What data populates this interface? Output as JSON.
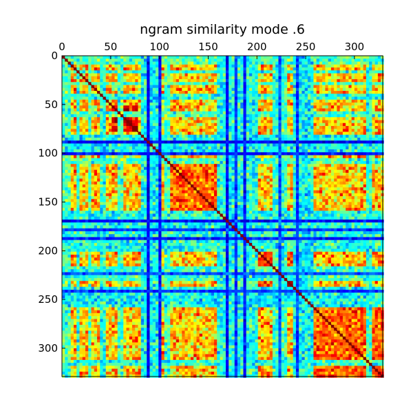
{
  "chart_data": {
    "type": "heatmap",
    "title": "ngram similarity mode .6",
    "xlabel": "",
    "ylabel": "",
    "matrix_size": 329,
    "xlim": [
      0,
      329
    ],
    "ylim": [
      329,
      0
    ],
    "x_ticks": [
      0,
      50,
      100,
      150,
      200,
      250,
      300
    ],
    "y_ticks": [
      0,
      50,
      100,
      150,
      200,
      250,
      300
    ],
    "x_axis_position": "top",
    "colormap": "jet",
    "value_range": [
      0,
      1
    ],
    "grid": false,
    "legend": "none",
    "diagonal_value": 1.0,
    "low_similarity_bands": [
      {
        "start": 86,
        "end": 89,
        "value": 0.12
      },
      {
        "start": 98,
        "end": 102,
        "value": 0.15
      },
      {
        "start": 168,
        "end": 171,
        "value": 0.12
      },
      {
        "start": 176,
        "end": 179,
        "value": 0.18
      },
      {
        "start": 186,
        "end": 190,
        "value": 0.15
      },
      {
        "start": 222,
        "end": 225,
        "value": 0.2
      },
      {
        "start": 241,
        "end": 243,
        "value": 0.18
      }
    ],
    "mid_similarity_bands": [
      {
        "start": 0,
        "end": 8,
        "value": 0.45
      },
      {
        "start": 14,
        "end": 18,
        "value": 0.42
      },
      {
        "start": 27,
        "end": 31,
        "value": 0.45
      },
      {
        "start": 40,
        "end": 44,
        "value": 0.4
      },
      {
        "start": 58,
        "end": 62,
        "value": 0.45
      },
      {
        "start": 80,
        "end": 98,
        "value": 0.38
      },
      {
        "start": 105,
        "end": 110,
        "value": 0.45
      },
      {
        "start": 160,
        "end": 200,
        "value": 0.4
      },
      {
        "start": 215,
        "end": 230,
        "value": 0.42
      },
      {
        "start": 238,
        "end": 258,
        "value": 0.38
      },
      {
        "start": 312,
        "end": 318,
        "value": 0.42
      }
    ],
    "high_similarity_blocks": [
      {
        "start": 50,
        "end": 78,
        "value": 0.9
      },
      {
        "start": 95,
        "end": 112,
        "value": 0.85
      },
      {
        "start": 112,
        "end": 168,
        "value": 0.78
      },
      {
        "start": 170,
        "end": 198,
        "value": 0.85
      },
      {
        "start": 198,
        "end": 245,
        "value": 0.8
      },
      {
        "start": 245,
        "end": 329,
        "value": 0.78
      }
    ],
    "background_similarity": 0.68
  }
}
